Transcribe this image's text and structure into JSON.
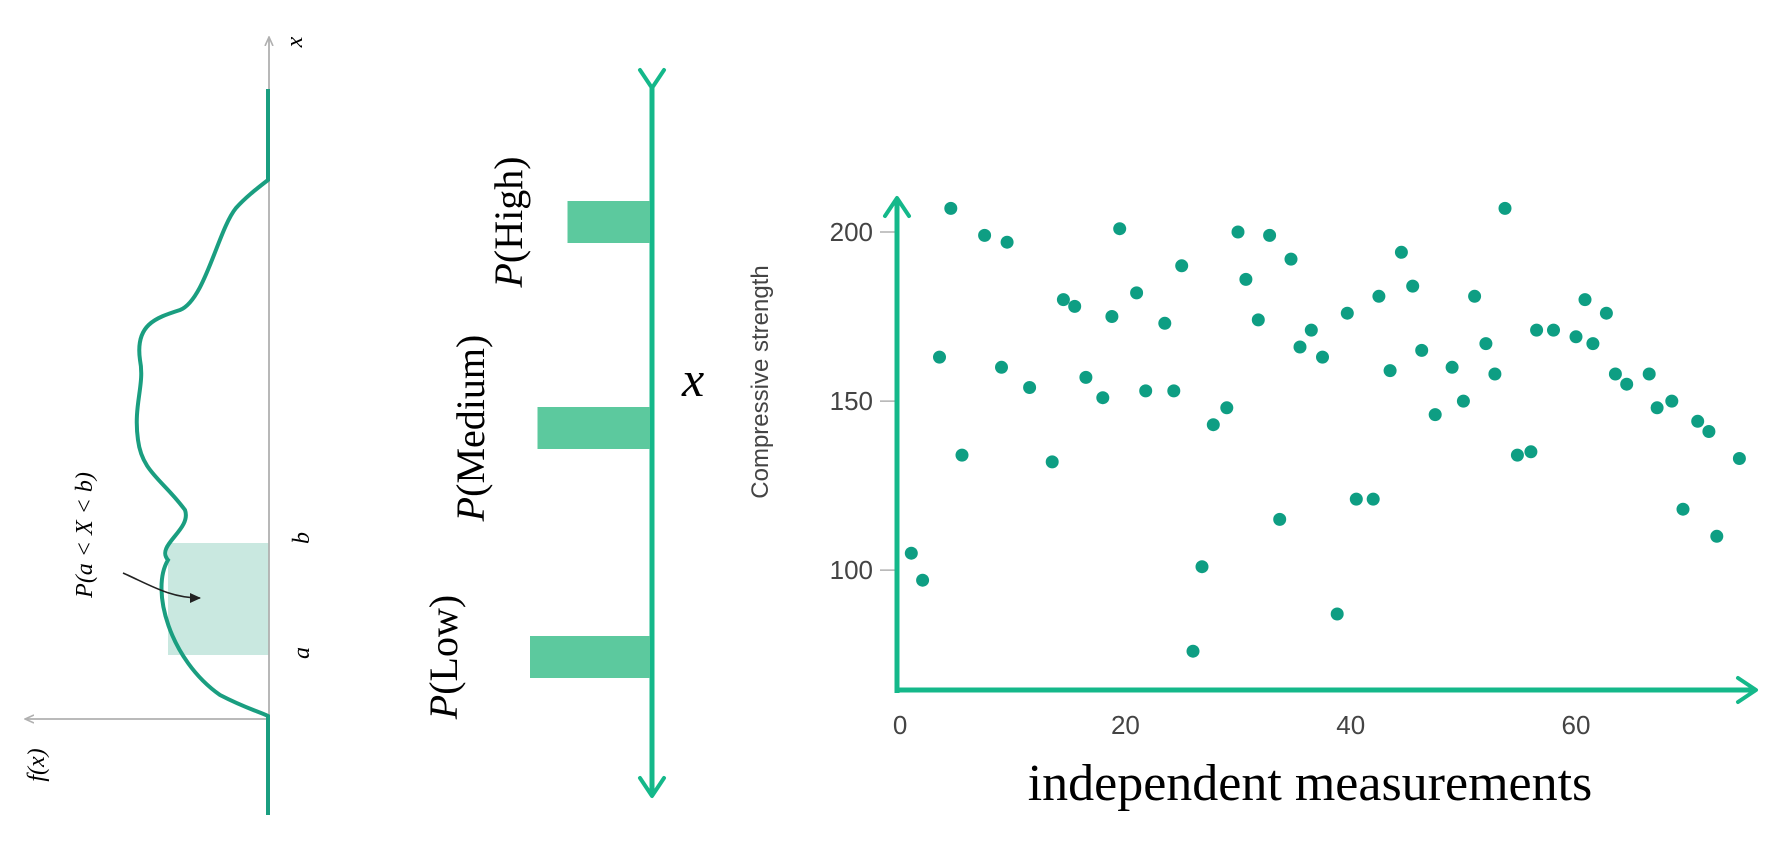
{
  "colors": {
    "accent": "#14B88A",
    "curve": "#1A9E80",
    "bar": "#5CC99E",
    "shade": "#C9E8E0",
    "point": "#0E9E83",
    "axis_gray": "#B0B0B0",
    "text": "#000000",
    "tick_text": "#444444"
  },
  "density_panel": {
    "x_axis_label": "x",
    "fx_label": "f(x)",
    "a_label": "a",
    "b_label": "b",
    "prob_label": "P(a < X < b)"
  },
  "bar_panel": {
    "axis_label": "x",
    "bars": [
      {
        "label": "P(High)",
        "value": 0.55
      },
      {
        "label": "P(Medium)",
        "value": 0.75
      },
      {
        "label": "P(Low)",
        "value": 0.8
      }
    ]
  },
  "chart_data": {
    "type": "scatter",
    "title": "",
    "xlabel": "independent measurements",
    "ylabel": "Compressive strength",
    "xlim": [
      -4,
      75
    ],
    "ylim": [
      66,
      208
    ],
    "x_ticks": [
      0,
      20,
      40,
      60
    ],
    "y_ticks": [
      100,
      150,
      200
    ],
    "grid": false,
    "series": [
      {
        "points": [
          [
            1,
            105
          ],
          [
            2,
            97
          ],
          [
            3.5,
            163
          ],
          [
            4.5,
            207
          ],
          [
            5.5,
            134
          ],
          [
            7.5,
            199
          ],
          [
            9,
            160
          ],
          [
            9.5,
            197
          ],
          [
            11.5,
            154
          ],
          [
            13.5,
            132
          ],
          [
            14.5,
            180
          ],
          [
            15.5,
            178
          ],
          [
            16.5,
            157
          ],
          [
            18,
            151
          ],
          [
            18.8,
            175
          ],
          [
            19.5,
            201
          ],
          [
            21,
            182
          ],
          [
            21.8,
            153
          ],
          [
            23.5,
            173
          ],
          [
            24.3,
            153
          ],
          [
            25,
            190
          ],
          [
            26,
            76
          ],
          [
            26.8,
            101
          ],
          [
            27.8,
            143
          ],
          [
            29,
            148
          ],
          [
            30,
            200
          ],
          [
            30.7,
            186
          ],
          [
            31.8,
            174
          ],
          [
            32.8,
            199
          ],
          [
            33.7,
            115
          ],
          [
            34.7,
            192
          ],
          [
            35.5,
            166
          ],
          [
            36.5,
            171
          ],
          [
            37.5,
            163
          ],
          [
            38.8,
            87
          ],
          [
            39.7,
            176
          ],
          [
            40.5,
            121
          ],
          [
            42,
            121
          ],
          [
            42.5,
            181
          ],
          [
            43.5,
            159
          ],
          [
            44.5,
            194
          ],
          [
            45.5,
            184
          ],
          [
            46.3,
            165
          ],
          [
            47.5,
            146
          ],
          [
            49,
            160
          ],
          [
            50,
            150
          ],
          [
            51,
            181
          ],
          [
            52,
            167
          ],
          [
            52.8,
            158
          ],
          [
            53.7,
            207
          ],
          [
            54.8,
            134
          ],
          [
            56,
            135
          ],
          [
            56.5,
            171
          ],
          [
            58,
            171
          ],
          [
            60,
            169
          ],
          [
            60.8,
            180
          ],
          [
            61.5,
            167
          ],
          [
            62.7,
            176
          ],
          [
            63.5,
            158
          ],
          [
            64.5,
            155
          ],
          [
            66.5,
            158
          ],
          [
            67.2,
            148
          ],
          [
            68.5,
            150
          ],
          [
            69.5,
            118
          ],
          [
            70.8,
            144
          ],
          [
            71.8,
            141
          ],
          [
            72.5,
            110
          ],
          [
            74.5,
            133
          ]
        ]
      }
    ]
  }
}
